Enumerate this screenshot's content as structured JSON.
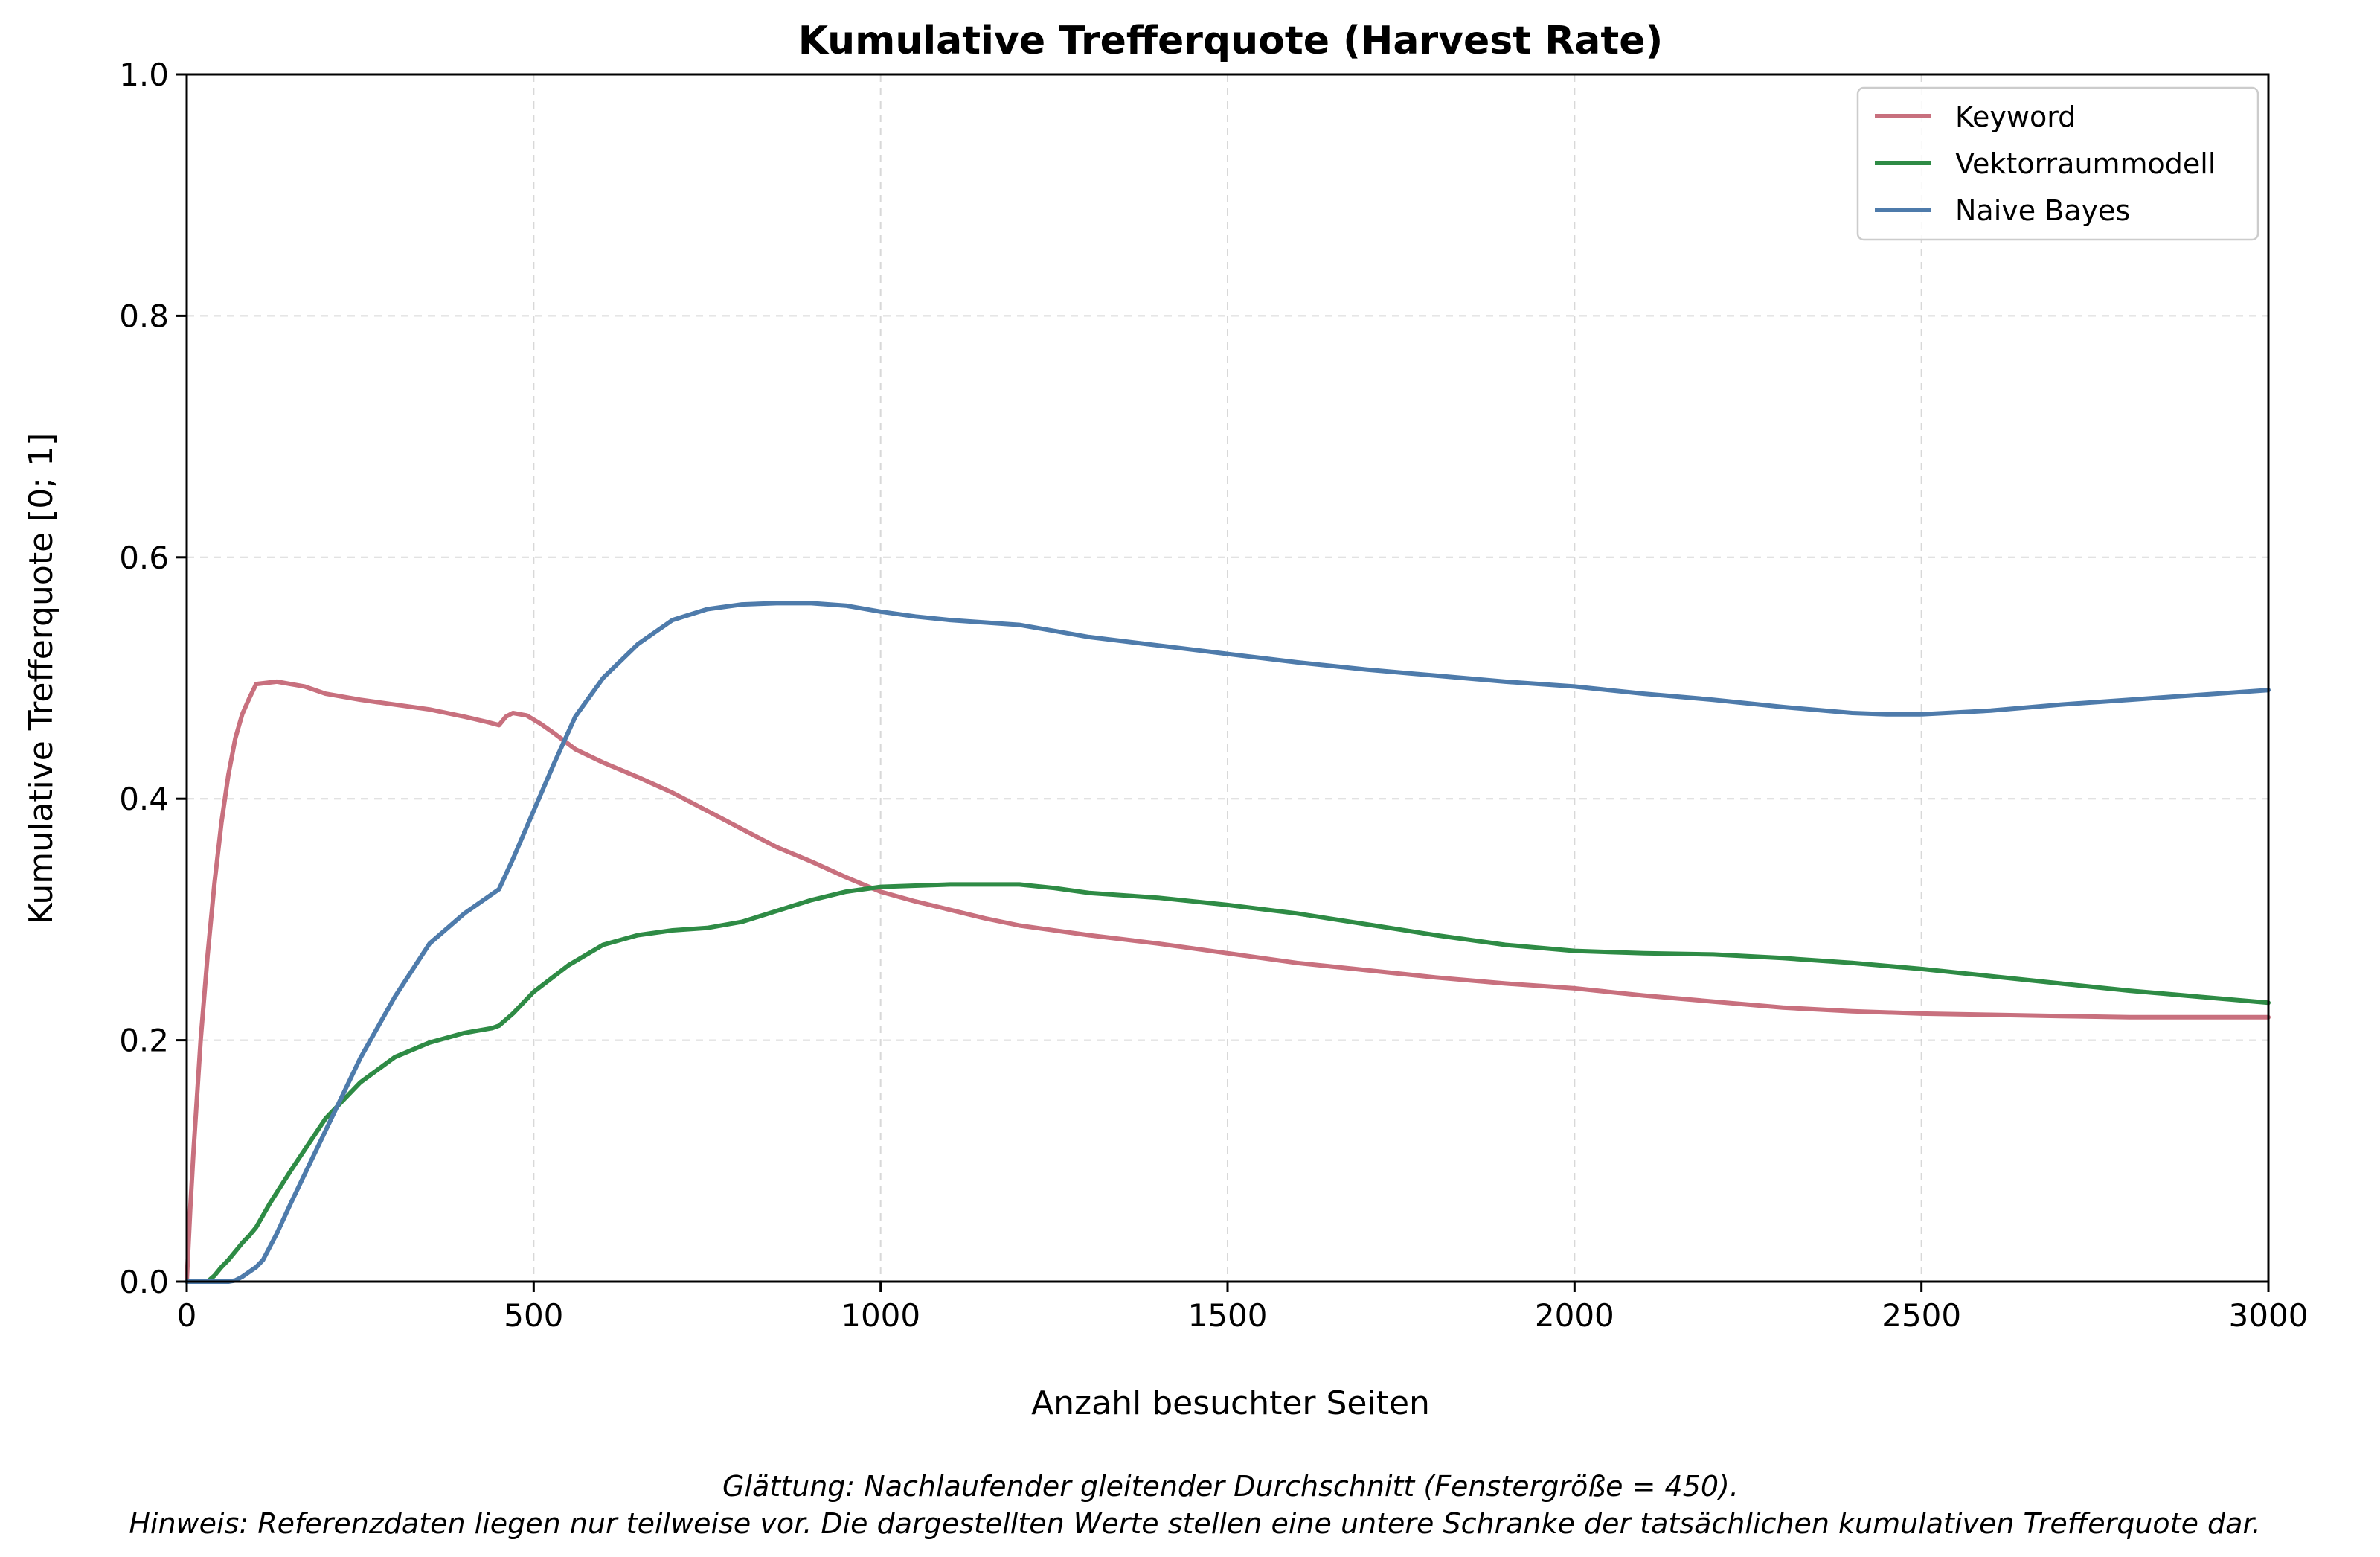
{
  "chart_data": {
    "type": "line",
    "title": "Kumulative Trefferquote (Harvest Rate)",
    "xlabel": "Anzahl besuchter Seiten",
    "ylabel": "Kumulative Trefferquote [0; 1]",
    "xlim": [
      0,
      3000
    ],
    "ylim": [
      0,
      1
    ],
    "xticks": [
      0,
      500,
      1000,
      1500,
      2000,
      2500,
      3000
    ],
    "yticks": [
      0.0,
      0.2,
      0.4,
      0.6,
      0.8,
      1.0
    ],
    "xtick_labels": [
      "0",
      "500",
      "1000",
      "1500",
      "2000",
      "2500",
      "3000"
    ],
    "ytick_labels": [
      "0.0",
      "0.2",
      "0.4",
      "0.6",
      "0.8",
      "1.0"
    ],
    "grid": true,
    "legend_position": "top-right",
    "series": [
      {
        "name": "Keyword",
        "color": "#c8707e",
        "x": [
          0,
          5,
          10,
          20,
          30,
          40,
          50,
          60,
          70,
          80,
          90,
          100,
          130,
          170,
          200,
          250,
          300,
          350,
          400,
          430,
          450,
          460,
          470,
          490,
          510,
          530,
          560,
          600,
          650,
          700,
          750,
          800,
          850,
          900,
          950,
          1000,
          1050,
          1100,
          1150,
          1200,
          1300,
          1400,
          1500,
          1550,
          1600,
          1700,
          1800,
          1900,
          2000,
          2100,
          2200,
          2300,
          2400,
          2500,
          2600,
          2700,
          2800,
          2900,
          3000
        ],
        "y": [
          0.0,
          0.06,
          0.11,
          0.2,
          0.27,
          0.33,
          0.38,
          0.42,
          0.45,
          0.47,
          0.483,
          0.495,
          0.497,
          0.493,
          0.487,
          0.482,
          0.478,
          0.474,
          0.468,
          0.464,
          0.461,
          0.468,
          0.471,
          0.469,
          0.462,
          0.454,
          0.441,
          0.43,
          0.418,
          0.405,
          0.39,
          0.375,
          0.36,
          0.348,
          0.335,
          0.323,
          0.315,
          0.308,
          0.301,
          0.295,
          0.287,
          0.28,
          0.272,
          0.268,
          0.264,
          0.258,
          0.252,
          0.247,
          0.243,
          0.237,
          0.232,
          0.227,
          0.224,
          0.222,
          0.221,
          0.22,
          0.219,
          0.219,
          0.219
        ]
      },
      {
        "name": "Vektorraummodell",
        "color": "#2e8b45",
        "x": [
          0,
          30,
          40,
          50,
          60,
          70,
          80,
          90,
          100,
          120,
          150,
          200,
          250,
          300,
          350,
          400,
          440,
          450,
          470,
          500,
          550,
          600,
          650,
          700,
          750,
          800,
          850,
          900,
          950,
          1000,
          1050,
          1100,
          1150,
          1200,
          1250,
          1300,
          1350,
          1400,
          1500,
          1600,
          1700,
          1800,
          1900,
          2000,
          2100,
          2200,
          2300,
          2400,
          2500,
          2600,
          2700,
          2800,
          2900,
          3000
        ],
        "y": [
          0.0,
          0.0,
          0.005,
          0.012,
          0.018,
          0.025,
          0.032,
          0.038,
          0.045,
          0.065,
          0.092,
          0.135,
          0.165,
          0.186,
          0.198,
          0.206,
          0.21,
          0.212,
          0.222,
          0.24,
          0.262,
          0.279,
          0.287,
          0.291,
          0.293,
          0.298,
          0.307,
          0.316,
          0.323,
          0.327,
          0.328,
          0.329,
          0.329,
          0.329,
          0.326,
          0.322,
          0.32,
          0.318,
          0.312,
          0.305,
          0.296,
          0.287,
          0.279,
          0.274,
          0.272,
          0.271,
          0.268,
          0.264,
          0.259,
          0.253,
          0.247,
          0.241,
          0.236,
          0.231
        ]
      },
      {
        "name": "Naive Bayes",
        "color": "#4e7bab",
        "x": [
          0,
          60,
          70,
          80,
          90,
          100,
          110,
          130,
          150,
          200,
          250,
          300,
          350,
          400,
          450,
          470,
          500,
          530,
          560,
          600,
          650,
          700,
          750,
          800,
          850,
          900,
          950,
          1000,
          1050,
          1100,
          1150,
          1200,
          1250,
          1300,
          1400,
          1500,
          1600,
          1700,
          1800,
          1900,
          2000,
          2100,
          2200,
          2300,
          2400,
          2450,
          2500,
          2600,
          2700,
          2800,
          2900,
          3000
        ],
        "y": [
          0.0,
          0.0,
          0.001,
          0.004,
          0.008,
          0.012,
          0.018,
          0.04,
          0.065,
          0.125,
          0.185,
          0.236,
          0.28,
          0.305,
          0.325,
          0.35,
          0.39,
          0.43,
          0.468,
          0.5,
          0.528,
          0.548,
          0.557,
          0.561,
          0.562,
          0.562,
          0.56,
          0.555,
          0.551,
          0.548,
          0.546,
          0.544,
          0.539,
          0.534,
          0.527,
          0.52,
          0.513,
          0.507,
          0.502,
          0.497,
          0.493,
          0.487,
          0.482,
          0.476,
          0.471,
          0.47,
          0.47,
          0.473,
          0.478,
          0.482,
          0.486,
          0.49
        ]
      }
    ],
    "annotations": [
      "Glättung: Nachlaufender gleitender Durchschnitt (Fenstergröße = 450).",
      "Hinweis: Referenzdaten liegen nur teilweise vor. Die dargestellten Werte stellen eine untere Schranke der tatsächlichen kumulativen Trefferquote dar."
    ]
  }
}
